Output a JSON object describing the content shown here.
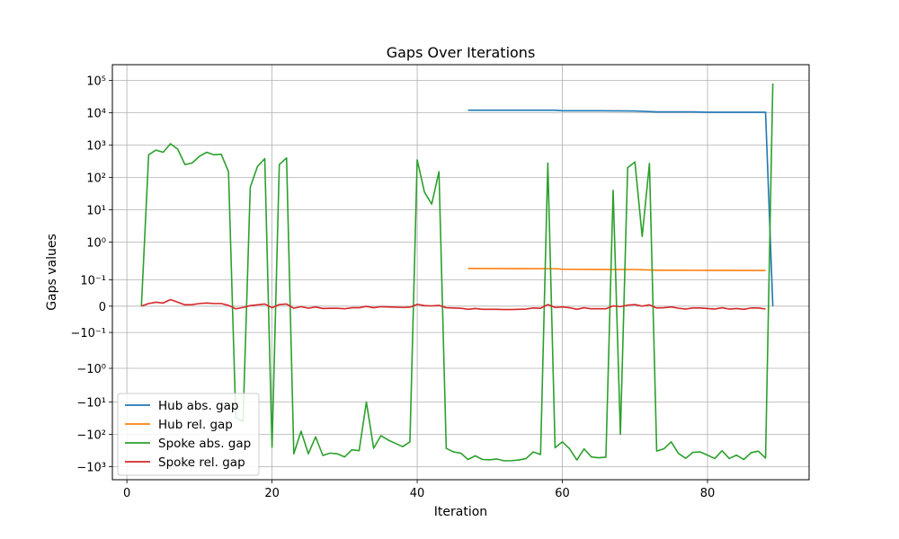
{
  "chart_data": {
    "type": "line",
    "title": "Gaps Over Iterations",
    "xlabel": "Iteration",
    "ylabel": "Gaps values",
    "yscale": "symlog",
    "xlim": [
      -2,
      94
    ],
    "xticks": [
      0,
      20,
      40,
      60,
      80
    ],
    "xtick_labels": [
      "0",
      "20",
      "40",
      "60",
      "80"
    ],
    "yticks": [
      -1000,
      -100,
      -10,
      -1,
      -0.1,
      0,
      0.1,
      1,
      10,
      100,
      1000,
      10000,
      100000
    ],
    "ytick_labels": [
      "−10³",
      "−10²",
      "−10¹",
      "−10⁰",
      "−10⁻¹",
      "0",
      "10⁻¹",
      "10⁰",
      "10¹",
      "10²",
      "10³",
      "10⁴",
      "10⁵"
    ],
    "grid": true,
    "legend_position": "lower-left",
    "series": [
      {
        "name": "Hub abs. gap",
        "color": "#1f77b4",
        "x": [
          47,
          50,
          55,
          59,
          60,
          65,
          70,
          73,
          78,
          80,
          85,
          88,
          89
        ],
        "y": [
          12000,
          12000,
          12000,
          12000,
          11500,
          11500,
          11300,
          10600,
          10600,
          10400,
          10400,
          10400,
          0
        ]
      },
      {
        "name": "Hub rel. gap",
        "color": "#ff7f0e",
        "x": [
          47,
          55,
          59,
          60,
          65,
          70,
          73,
          78,
          80,
          85,
          88
        ],
        "y": [
          0.2,
          0.198,
          0.197,
          0.191,
          0.189,
          0.188,
          0.18,
          0.179,
          0.178,
          0.177,
          0.177
        ]
      },
      {
        "name": "Spoke abs. gap",
        "color": "#2ca02c",
        "x": [
          2,
          3,
          4,
          5,
          6,
          7,
          8,
          9,
          10,
          11,
          12,
          13,
          14,
          15,
          16,
          17,
          18,
          19,
          20,
          21,
          22,
          23,
          24,
          25,
          26,
          27,
          28,
          29,
          30,
          31,
          32,
          33,
          34,
          35,
          36,
          37,
          38,
          39,
          40,
          41,
          42,
          43,
          44,
          45,
          46,
          47,
          48,
          49,
          50,
          51,
          52,
          53,
          54,
          55,
          56,
          57,
          58,
          59,
          60,
          61,
          62,
          63,
          64,
          65,
          66,
          67,
          68,
          69,
          70,
          71,
          72,
          73,
          74,
          75,
          76,
          77,
          78,
          79,
          80,
          81,
          82,
          83,
          84,
          85,
          86,
          87,
          88,
          89
        ],
        "y": [
          0,
          500,
          700,
          600,
          1100,
          750,
          250,
          280,
          450,
          600,
          500,
          520,
          150,
          -30,
          -40,
          50,
          220,
          380,
          -250,
          250,
          400,
          -400,
          -80,
          -400,
          -120,
          -450,
          -380,
          -400,
          -500,
          -300,
          -320,
          -10,
          -270,
          -110,
          -150,
          -190,
          -240,
          -170,
          350,
          35,
          15,
          150,
          -270,
          -350,
          -380,
          -600,
          -460,
          -600,
          -610,
          -580,
          -660,
          -650,
          -620,
          -560,
          -350,
          -420,
          280,
          -260,
          -170,
          -280,
          -620,
          -280,
          -500,
          -530,
          -510,
          40,
          -100,
          200,
          300,
          1.5,
          270,
          -330,
          -280,
          -170,
          -390,
          -550,
          -360,
          -350,
          -440,
          -560,
          -320,
          -560,
          -440,
          -600,
          -370,
          -330,
          -540,
          80000
        ]
      },
      {
        "name": "Spoke rel. gap",
        "color": "#d62728",
        "x": [
          2,
          3,
          4,
          5,
          6,
          7,
          8,
          9,
          10,
          11,
          12,
          13,
          14,
          15,
          16,
          17,
          18,
          19,
          20,
          21,
          22,
          23,
          24,
          25,
          26,
          27,
          28,
          29,
          30,
          31,
          32,
          33,
          34,
          35,
          36,
          37,
          38,
          39,
          40,
          41,
          42,
          43,
          44,
          45,
          46,
          47,
          48,
          49,
          50,
          51,
          52,
          53,
          54,
          55,
          56,
          57,
          58,
          59,
          60,
          61,
          62,
          63,
          64,
          65,
          66,
          67,
          68,
          69,
          70,
          71,
          72,
          73,
          74,
          75,
          76,
          77,
          78,
          79,
          80,
          81,
          82,
          83,
          84,
          85,
          86,
          87,
          88
        ],
        "y": [
          0,
          0.01,
          0.015,
          0.012,
          0.025,
          0.015,
          0.005,
          0.006,
          0.01,
          0.012,
          0.01,
          0.01,
          0.003,
          -0.01,
          -0.005,
          0.002,
          0.005,
          0.008,
          -0.006,
          0.006,
          0.008,
          -0.008,
          -0.002,
          -0.008,
          -0.003,
          -0.009,
          -0.008,
          -0.008,
          -0.01,
          -0.006,
          -0.006,
          -0.001,
          -0.006,
          -0.002,
          -0.003,
          -0.004,
          -0.005,
          -0.004,
          0.007,
          0.002,
          0.001,
          0.003,
          -0.006,
          -0.007,
          -0.008,
          -0.012,
          -0.009,
          -0.012,
          -0.012,
          -0.012,
          -0.013,
          -0.013,
          -0.012,
          -0.011,
          -0.007,
          -0.008,
          0.006,
          -0.005,
          -0.003,
          -0.006,
          -0.012,
          -0.006,
          -0.01,
          -0.01,
          -0.01,
          0.001,
          -0.002,
          0.004,
          0.006,
          0.0001,
          0.005,
          -0.007,
          -0.006,
          -0.003,
          -0.008,
          -0.011,
          -0.007,
          -0.007,
          -0.009,
          -0.011,
          -0.006,
          -0.011,
          -0.009,
          -0.012,
          -0.007,
          -0.007,
          -0.011
        ]
      }
    ]
  }
}
